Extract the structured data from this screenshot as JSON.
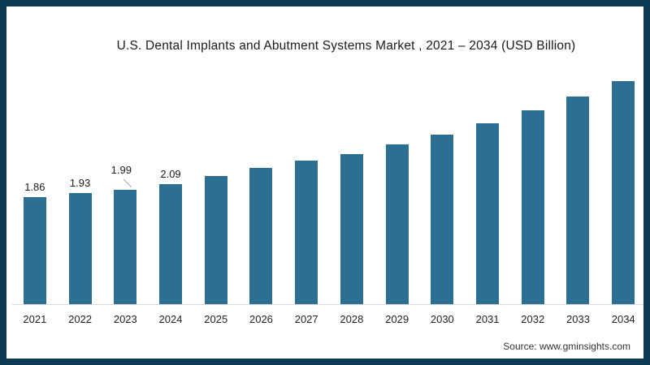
{
  "frame": {
    "border_color": "#0e3a53",
    "background_color": "#ffffff"
  },
  "chart_data": {
    "type": "bar",
    "title": "U.S. Dental Implants and Abutment Systems Market , 2021 – 2034 (USD Billion)",
    "categories": [
      "2021",
      "2022",
      "2023",
      "2024",
      "2025",
      "2026",
      "2027",
      "2028",
      "2029",
      "2030",
      "2031",
      "2032",
      "2033",
      "2034"
    ],
    "values": [
      1.86,
      1.93,
      1.99,
      2.09,
      2.23,
      2.36,
      2.49,
      2.61,
      2.77,
      2.94,
      3.14,
      3.37,
      3.6,
      3.88
    ],
    "data_labels": [
      "1.86",
      "1.93",
      "1.99",
      "2.09",
      "",
      "",
      "",
      "",
      "",
      "",
      "",
      "",
      "",
      ""
    ],
    "callout_index": 2,
    "xlabel": "",
    "ylabel": "",
    "ylim": [
      0,
      4
    ],
    "grid": false,
    "legend": "none",
    "bar_color": "#2d6f92",
    "axis_line_color": "#d9d9d9",
    "callout_line_color": "#9aa7ad"
  },
  "footer": {
    "source": "Source: www.gminsights.com"
  }
}
